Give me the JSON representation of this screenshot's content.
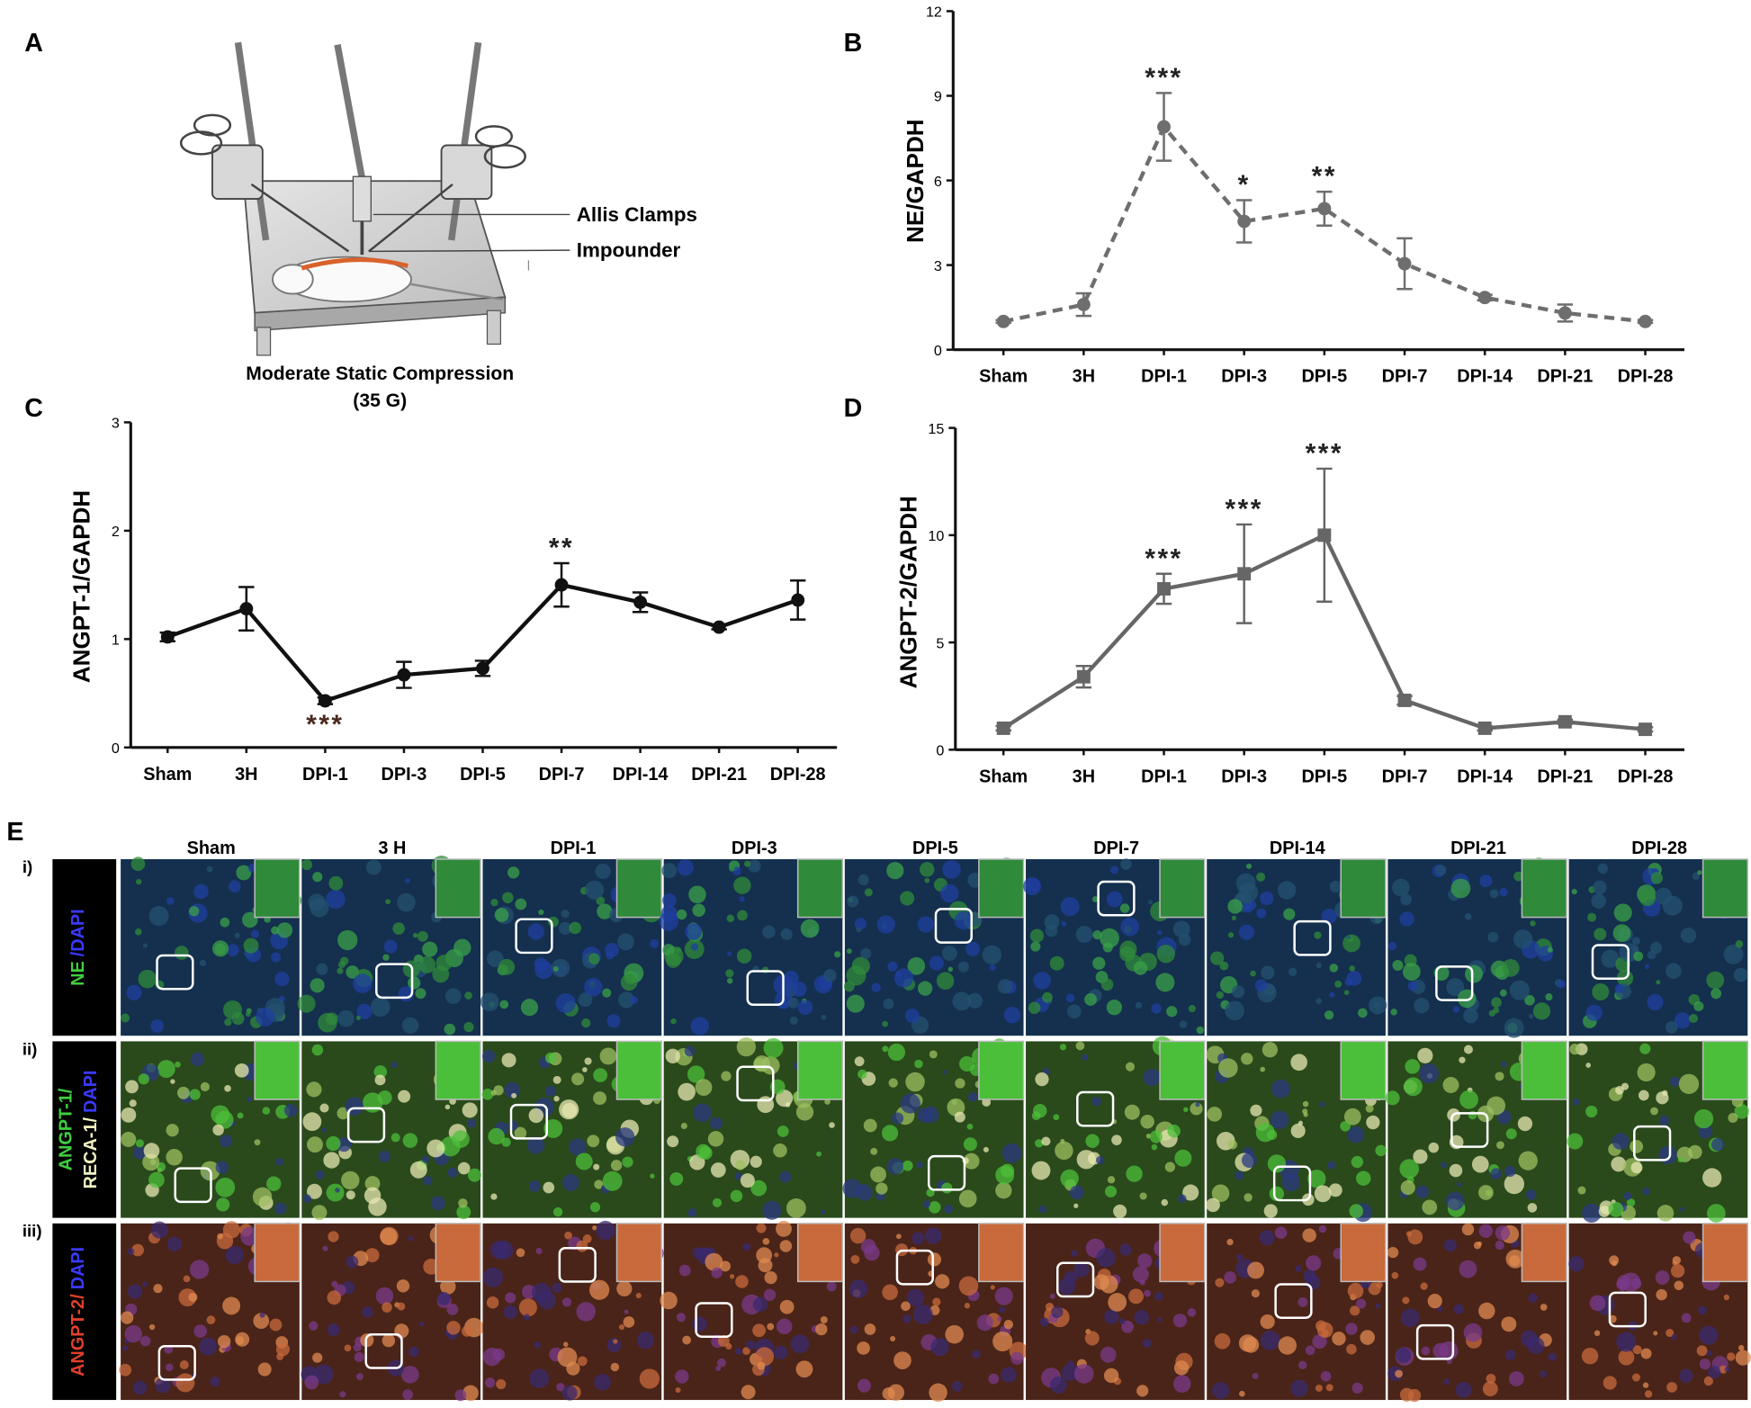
{
  "chart_data": [
    {
      "type": "line",
      "panel": "B",
      "y_label": "NE/GAPDH",
      "categories": [
        "Sham",
        "3H",
        "DPI-1",
        "DPI-3",
        "DPI-5",
        "DPI-7",
        "DPI-14",
        "DPI-21",
        "DPI-28"
      ],
      "ylim": [
        0,
        12
      ],
      "yticks": [
        0,
        3,
        6,
        9,
        12
      ],
      "series": [
        {
          "color": "#6e6e6e",
          "dash": true,
          "marker": "circle",
          "values": [
            1.0,
            1.6,
            7.9,
            4.55,
            5.0,
            3.05,
            1.85,
            1.3,
            1.0
          ],
          "errors": [
            0.05,
            0.4,
            1.2,
            0.75,
            0.6,
            0.9,
            0.1,
            0.3,
            0.05
          ],
          "annotations": [
            null,
            null,
            "***",
            "*",
            "**",
            null,
            null,
            null,
            null
          ]
        }
      ]
    },
    {
      "type": "line",
      "panel": "C",
      "y_label": "ANGPT-1/GAPDH",
      "categories": [
        "Sham",
        "3H",
        "DPI-1",
        "DPI-3",
        "DPI-5",
        "DPI-7",
        "DPI-14",
        "DPI-21",
        "DPI-28"
      ],
      "ylim": [
        0,
        3
      ],
      "yticks": [
        0,
        1,
        2,
        3
      ],
      "series": [
        {
          "color": "#111111",
          "dash": false,
          "marker": "circle",
          "values": [
            1.02,
            1.28,
            0.43,
            0.67,
            0.73,
            1.5,
            1.34,
            1.11,
            1.36
          ],
          "errors": [
            0.04,
            0.2,
            0.03,
            0.12,
            0.07,
            0.2,
            0.09,
            0.02,
            0.18
          ],
          "annotations": [
            null,
            null,
            "***",
            null,
            null,
            "**",
            null,
            null,
            null
          ],
          "annotation_side": [
            null,
            null,
            "below",
            null,
            null,
            "above",
            null,
            null,
            null
          ]
        }
      ]
    },
    {
      "type": "line",
      "panel": "D",
      "y_label": "ANGPT-2/GAPDH",
      "categories": [
        "Sham",
        "3H",
        "DPI-1",
        "DPI-3",
        "DPI-5",
        "DPI-7",
        "DPI-14",
        "DPI-21",
        "DPI-28"
      ],
      "ylim": [
        0,
        15
      ],
      "yticks": [
        0,
        5,
        10,
        15
      ],
      "series": [
        {
          "color": "#666666",
          "dash": false,
          "marker": "square",
          "values": [
            1.0,
            3.4,
            7.5,
            8.2,
            10.0,
            2.3,
            1.0,
            1.3,
            0.95
          ],
          "errors": [
            0.1,
            0.5,
            0.7,
            2.3,
            3.1,
            0.2,
            0.1,
            0.1,
            0.1
          ],
          "annotations": [
            null,
            null,
            "***",
            "***",
            "***",
            null,
            null,
            null,
            null
          ]
        }
      ]
    }
  ],
  "panel_a": {
    "label": "A",
    "callouts": [
      "Allis Clamps",
      "Impounder"
    ],
    "caption": [
      "Moderate Static Compression",
      "(35 G)"
    ]
  },
  "panel_e": {
    "label": "E",
    "columns": [
      "Sham",
      "3 H",
      "DPI-1",
      "DPI-3",
      "DPI-5",
      "DPI-7",
      "DPI-14",
      "DPI-21",
      "DPI-28"
    ],
    "rows": [
      {
        "label": "i)",
        "stain": [
          [
            {
              "text": "NE",
              "color": "#3fcf3f"
            },
            {
              "text": "/DAPI",
              "color": "#3a3aff"
            }
          ]
        ]
      },
      {
        "label": "ii)",
        "stain": [
          [
            {
              "text": "ANGPT-1/",
              "color": "#3fcf3f"
            }
          ],
          [
            {
              "text": "RECA-1/",
              "color": "#f2f2c0"
            },
            {
              "text": "DAPI",
              "color": "#3a3aff"
            }
          ]
        ]
      },
      {
        "label": "iii)",
        "stain": [
          [
            {
              "text": "ANGPT-2/",
              "color": "#e0402a"
            },
            {
              "text": "DAPI",
              "color": "#3a3aff"
            }
          ]
        ]
      }
    ]
  }
}
